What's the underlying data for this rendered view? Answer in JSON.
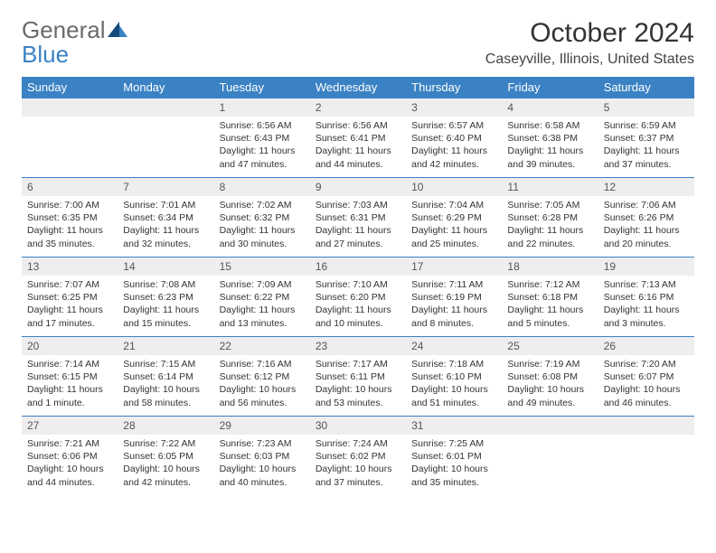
{
  "brand": {
    "name_part1": "General",
    "name_part2": "Blue"
  },
  "title": "October 2024",
  "location": "Caseyville, Illinois, United States",
  "colors": {
    "header_bg": "#3b82c4",
    "header_fg": "#ffffff",
    "daynum_bg": "#eeeeee",
    "text": "#333333",
    "logo_gray": "#6b6b6b",
    "logo_blue": "#3b82c4"
  },
  "weekdays": [
    "Sunday",
    "Monday",
    "Tuesday",
    "Wednesday",
    "Thursday",
    "Friday",
    "Saturday"
  ],
  "weeks": [
    [
      null,
      null,
      {
        "d": "1",
        "sunrise": "6:56 AM",
        "sunset": "6:43 PM",
        "daylight": "11 hours and 47 minutes."
      },
      {
        "d": "2",
        "sunrise": "6:56 AM",
        "sunset": "6:41 PM",
        "daylight": "11 hours and 44 minutes."
      },
      {
        "d": "3",
        "sunrise": "6:57 AM",
        "sunset": "6:40 PM",
        "daylight": "11 hours and 42 minutes."
      },
      {
        "d": "4",
        "sunrise": "6:58 AM",
        "sunset": "6:38 PM",
        "daylight": "11 hours and 39 minutes."
      },
      {
        "d": "5",
        "sunrise": "6:59 AM",
        "sunset": "6:37 PM",
        "daylight": "11 hours and 37 minutes."
      }
    ],
    [
      {
        "d": "6",
        "sunrise": "7:00 AM",
        "sunset": "6:35 PM",
        "daylight": "11 hours and 35 minutes."
      },
      {
        "d": "7",
        "sunrise": "7:01 AM",
        "sunset": "6:34 PM",
        "daylight": "11 hours and 32 minutes."
      },
      {
        "d": "8",
        "sunrise": "7:02 AM",
        "sunset": "6:32 PM",
        "daylight": "11 hours and 30 minutes."
      },
      {
        "d": "9",
        "sunrise": "7:03 AM",
        "sunset": "6:31 PM",
        "daylight": "11 hours and 27 minutes."
      },
      {
        "d": "10",
        "sunrise": "7:04 AM",
        "sunset": "6:29 PM",
        "daylight": "11 hours and 25 minutes."
      },
      {
        "d": "11",
        "sunrise": "7:05 AM",
        "sunset": "6:28 PM",
        "daylight": "11 hours and 22 minutes."
      },
      {
        "d": "12",
        "sunrise": "7:06 AM",
        "sunset": "6:26 PM",
        "daylight": "11 hours and 20 minutes."
      }
    ],
    [
      {
        "d": "13",
        "sunrise": "7:07 AM",
        "sunset": "6:25 PM",
        "daylight": "11 hours and 17 minutes."
      },
      {
        "d": "14",
        "sunrise": "7:08 AM",
        "sunset": "6:23 PM",
        "daylight": "11 hours and 15 minutes."
      },
      {
        "d": "15",
        "sunrise": "7:09 AM",
        "sunset": "6:22 PM",
        "daylight": "11 hours and 13 minutes."
      },
      {
        "d": "16",
        "sunrise": "7:10 AM",
        "sunset": "6:20 PM",
        "daylight": "11 hours and 10 minutes."
      },
      {
        "d": "17",
        "sunrise": "7:11 AM",
        "sunset": "6:19 PM",
        "daylight": "11 hours and 8 minutes."
      },
      {
        "d": "18",
        "sunrise": "7:12 AM",
        "sunset": "6:18 PM",
        "daylight": "11 hours and 5 minutes."
      },
      {
        "d": "19",
        "sunrise": "7:13 AM",
        "sunset": "6:16 PM",
        "daylight": "11 hours and 3 minutes."
      }
    ],
    [
      {
        "d": "20",
        "sunrise": "7:14 AM",
        "sunset": "6:15 PM",
        "daylight": "11 hours and 1 minute."
      },
      {
        "d": "21",
        "sunrise": "7:15 AM",
        "sunset": "6:14 PM",
        "daylight": "10 hours and 58 minutes."
      },
      {
        "d": "22",
        "sunrise": "7:16 AM",
        "sunset": "6:12 PM",
        "daylight": "10 hours and 56 minutes."
      },
      {
        "d": "23",
        "sunrise": "7:17 AM",
        "sunset": "6:11 PM",
        "daylight": "10 hours and 53 minutes."
      },
      {
        "d": "24",
        "sunrise": "7:18 AM",
        "sunset": "6:10 PM",
        "daylight": "10 hours and 51 minutes."
      },
      {
        "d": "25",
        "sunrise": "7:19 AM",
        "sunset": "6:08 PM",
        "daylight": "10 hours and 49 minutes."
      },
      {
        "d": "26",
        "sunrise": "7:20 AM",
        "sunset": "6:07 PM",
        "daylight": "10 hours and 46 minutes."
      }
    ],
    [
      {
        "d": "27",
        "sunrise": "7:21 AM",
        "sunset": "6:06 PM",
        "daylight": "10 hours and 44 minutes."
      },
      {
        "d": "28",
        "sunrise": "7:22 AM",
        "sunset": "6:05 PM",
        "daylight": "10 hours and 42 minutes."
      },
      {
        "d": "29",
        "sunrise": "7:23 AM",
        "sunset": "6:03 PM",
        "daylight": "10 hours and 40 minutes."
      },
      {
        "d": "30",
        "sunrise": "7:24 AM",
        "sunset": "6:02 PM",
        "daylight": "10 hours and 37 minutes."
      },
      {
        "d": "31",
        "sunrise": "7:25 AM",
        "sunset": "6:01 PM",
        "daylight": "10 hours and 35 minutes."
      },
      null,
      null
    ]
  ],
  "labels": {
    "sunrise": "Sunrise:",
    "sunset": "Sunset:",
    "daylight": "Daylight:"
  }
}
